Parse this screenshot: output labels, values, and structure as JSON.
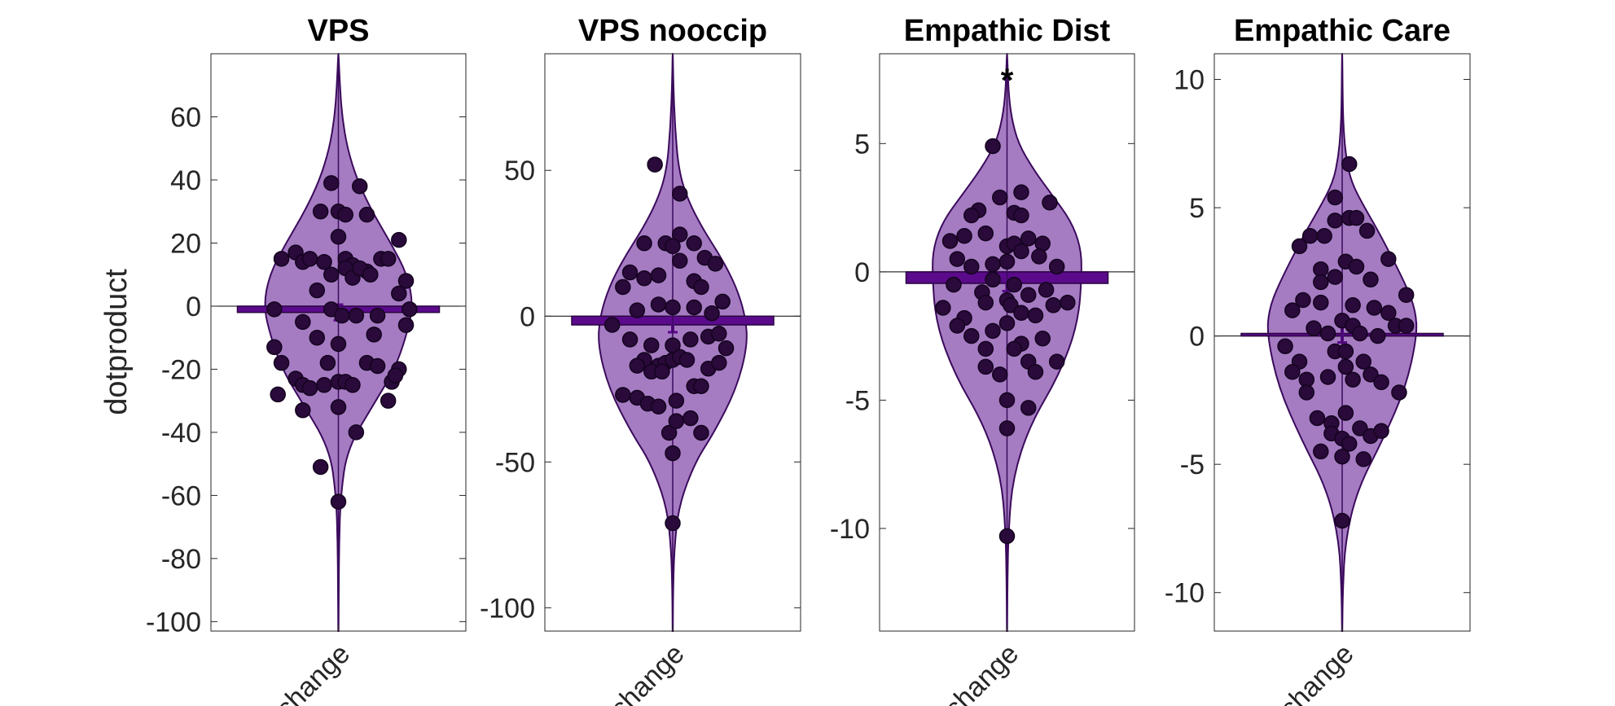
{
  "ylabel": "dotproduct",
  "colors": {
    "violin_fill": "#a57cc2",
    "violin_edge": "#3b0a5c",
    "bar_fill": "#5b0a8c",
    "point_fill": "#2a0a3a",
    "zero_line": "#000000",
    "axis": "#262626"
  },
  "chart_data": [
    {
      "type": "violin",
      "title": "VPS",
      "xlabel": "change",
      "ylim": [
        -103,
        80
      ],
      "yticks": [
        60,
        40,
        20,
        0,
        -20,
        -40,
        -60,
        -80,
        -100
      ],
      "ytick_labels": [
        "60",
        "40",
        "20",
        "0",
        "-20",
        "-40",
        "-60",
        "-80",
        "-100"
      ],
      "mean": -2.0,
      "sem": 2.5,
      "significant_marker": "",
      "violin_range": [
        -103,
        80
      ],
      "violin_density": [
        [
          -103,
          0.002
        ],
        [
          -90,
          0.005
        ],
        [
          -75,
          0.01
        ],
        [
          -60,
          0.03
        ],
        [
          -45,
          0.12
        ],
        [
          -30,
          0.5
        ],
        [
          -20,
          0.75
        ],
        [
          -10,
          0.9
        ],
        [
          0,
          1.0
        ],
        [
          10,
          0.92
        ],
        [
          20,
          0.7
        ],
        [
          30,
          0.45
        ],
        [
          40,
          0.25
        ],
        [
          50,
          0.12
        ],
        [
          60,
          0.05
        ],
        [
          70,
          0.02
        ],
        [
          80,
          0.002
        ]
      ],
      "points": [
        {
          "x": -0.8,
          "y": 15
        },
        {
          "x": -0.6,
          "y": 17
        },
        {
          "x": -0.5,
          "y": 14
        },
        {
          "x": -0.4,
          "y": 15
        },
        {
          "x": -0.2,
          "y": 14
        },
        {
          "x": 0.1,
          "y": 15
        },
        {
          "x": 0.2,
          "y": 13
        },
        {
          "x": 0.4,
          "y": 11
        },
        {
          "x": 0.6,
          "y": 15
        },
        {
          "x": 0.7,
          "y": 15
        },
        {
          "x": 0.85,
          "y": 21
        },
        {
          "x": -0.25,
          "y": 30
        },
        {
          "x": -0.1,
          "y": 39
        },
        {
          "x": 0.0,
          "y": 30
        },
        {
          "x": 0.1,
          "y": 29
        },
        {
          "x": 0.3,
          "y": 38
        },
        {
          "x": 0.4,
          "y": 29
        },
        {
          "x": 0.0,
          "y": 22
        },
        {
          "x": -0.3,
          "y": 5
        },
        {
          "x": -0.1,
          "y": 10
        },
        {
          "x": 0.1,
          "y": 12
        },
        {
          "x": 0.2,
          "y": 9
        },
        {
          "x": 0.3,
          "y": 12
        },
        {
          "x": 0.45,
          "y": 10
        },
        {
          "x": 0.85,
          "y": 4
        },
        {
          "x": 0.95,
          "y": 8
        },
        {
          "x": -0.9,
          "y": -1
        },
        {
          "x": -0.5,
          "y": -5
        },
        {
          "x": -0.1,
          "y": -1
        },
        {
          "x": 0.05,
          "y": -3
        },
        {
          "x": 0.25,
          "y": -3
        },
        {
          "x": 0.55,
          "y": -3
        },
        {
          "x": 1.0,
          "y": -1
        },
        {
          "x": 0.95,
          "y": -6
        },
        {
          "x": -0.9,
          "y": -13
        },
        {
          "x": -0.3,
          "y": -10
        },
        {
          "x": 0.0,
          "y": -12
        },
        {
          "x": 0.5,
          "y": -9
        },
        {
          "x": -0.8,
          "y": -18
        },
        {
          "x": -0.6,
          "y": -23
        },
        {
          "x": -0.5,
          "y": -25
        },
        {
          "x": -0.4,
          "y": -26
        },
        {
          "x": -0.2,
          "y": -25
        },
        {
          "x": 0.0,
          "y": -24
        },
        {
          "x": 0.1,
          "y": -24
        },
        {
          "x": 0.2,
          "y": -25
        },
        {
          "x": 0.4,
          "y": -18
        },
        {
          "x": 0.55,
          "y": -19
        },
        {
          "x": 0.75,
          "y": -24
        },
        {
          "x": 0.85,
          "y": -20
        },
        {
          "x": 0.8,
          "y": -22
        },
        {
          "x": -0.15,
          "y": -18
        },
        {
          "x": -0.85,
          "y": -28
        },
        {
          "x": -0.5,
          "y": -33
        },
        {
          "x": 0.0,
          "y": -32
        },
        {
          "x": 0.7,
          "y": -30
        },
        {
          "x": 0.25,
          "y": -40
        },
        {
          "x": -0.25,
          "y": -51
        },
        {
          "x": 0.0,
          "y": -62
        }
      ]
    },
    {
      "type": "violin",
      "title": "VPS nooccip",
      "xlabel": "change",
      "ylim": [
        -108,
        90
      ],
      "yticks": [
        50,
        0,
        -50,
        -100
      ],
      "ytick_labels": [
        "50",
        "0",
        "-50",
        "-100"
      ],
      "mean": -3.0,
      "sem": 2.5,
      "significant_marker": "",
      "violin_range": [
        -108,
        90
      ],
      "violin_density": [
        [
          -108,
          0.002
        ],
        [
          -95,
          0.005
        ],
        [
          -80,
          0.02
        ],
        [
          -65,
          0.08
        ],
        [
          -50,
          0.3
        ],
        [
          -40,
          0.55
        ],
        [
          -25,
          0.85
        ],
        [
          -10,
          1.0
        ],
        [
          0,
          0.97
        ],
        [
          10,
          0.85
        ],
        [
          20,
          0.65
        ],
        [
          30,
          0.4
        ],
        [
          40,
          0.2
        ],
        [
          50,
          0.08
        ],
        [
          65,
          0.03
        ],
        [
          80,
          0.008
        ],
        [
          90,
          0.002
        ]
      ],
      "points": [
        {
          "x": -0.25,
          "y": 52
        },
        {
          "x": 0.1,
          "y": 42
        },
        {
          "x": 0.1,
          "y": 28
        },
        {
          "x": -0.6,
          "y": 15
        },
        {
          "x": -0.4,
          "y": 13
        },
        {
          "x": -0.2,
          "y": 14
        },
        {
          "x": -0.1,
          "y": 25
        },
        {
          "x": 0.0,
          "y": 24
        },
        {
          "x": 0.1,
          "y": 19
        },
        {
          "x": 0.3,
          "y": 12
        },
        {
          "x": 0.4,
          "y": 10
        },
        {
          "x": 0.3,
          "y": 25
        },
        {
          "x": 0.45,
          "y": 20
        },
        {
          "x": 0.6,
          "y": 18
        },
        {
          "x": -0.4,
          "y": 25
        },
        {
          "x": -0.7,
          "y": 10
        },
        {
          "x": -0.5,
          "y": 2
        },
        {
          "x": -0.2,
          "y": 4
        },
        {
          "x": 0.0,
          "y": 3
        },
        {
          "x": 0.3,
          "y": 3
        },
        {
          "x": 0.55,
          "y": 1
        },
        {
          "x": 0.7,
          "y": 5
        },
        {
          "x": -0.85,
          "y": -3
        },
        {
          "x": -0.6,
          "y": -8
        },
        {
          "x": -0.3,
          "y": -10
        },
        {
          "x": 0.0,
          "y": -10
        },
        {
          "x": 0.25,
          "y": -8
        },
        {
          "x": 0.5,
          "y": -7
        },
        {
          "x": 0.65,
          "y": -6
        },
        {
          "x": 0.75,
          "y": -11
        },
        {
          "x": -0.4,
          "y": -15
        },
        {
          "x": -0.2,
          "y": -17
        },
        {
          "x": -0.1,
          "y": -16
        },
        {
          "x": 0.0,
          "y": -15
        },
        {
          "x": 0.1,
          "y": -14
        },
        {
          "x": 0.2,
          "y": -15
        },
        {
          "x": -0.3,
          "y": -19
        },
        {
          "x": -0.15,
          "y": -19
        },
        {
          "x": 0.5,
          "y": -18
        },
        {
          "x": 0.65,
          "y": -16
        },
        {
          "x": -0.5,
          "y": -17
        },
        {
          "x": -0.7,
          "y": -27
        },
        {
          "x": -0.5,
          "y": -28
        },
        {
          "x": -0.35,
          "y": -30
        },
        {
          "x": -0.2,
          "y": -31
        },
        {
          "x": 0.05,
          "y": -29
        },
        {
          "x": 0.3,
          "y": -24
        },
        {
          "x": 0.4,
          "y": -24
        },
        {
          "x": -0.05,
          "y": -40
        },
        {
          "x": 0.05,
          "y": -36
        },
        {
          "x": 0.25,
          "y": -35
        },
        {
          "x": 0.4,
          "y": -40
        },
        {
          "x": 0.0,
          "y": -47
        },
        {
          "x": 0.0,
          "y": -71
        }
      ]
    },
    {
      "type": "violin",
      "title": "Empathic Dist",
      "xlabel": "change",
      "ylim": [
        -14,
        8.5
      ],
      "yticks": [
        5,
        0,
        -5,
        -10
      ],
      "ytick_labels": [
        "5",
        "0",
        "-5",
        "-10"
      ],
      "mean": -0.45,
      "sem": 0.3,
      "significant_marker": "*",
      "violin_range": [
        -14,
        8.5
      ],
      "violin_density": [
        [
          -14,
          0.002
        ],
        [
          -12,
          0.006
        ],
        [
          -10,
          0.02
        ],
        [
          -8,
          0.08
        ],
        [
          -6,
          0.3
        ],
        [
          -4,
          0.7
        ],
        [
          -2,
          0.95
        ],
        [
          0,
          1.0
        ],
        [
          1,
          0.98
        ],
        [
          2,
          0.85
        ],
        [
          3,
          0.6
        ],
        [
          4,
          0.35
        ],
        [
          5,
          0.15
        ],
        [
          6,
          0.06
        ],
        [
          7,
          0.02
        ],
        [
          8.5,
          0.002
        ]
      ],
      "points": [
        {
          "x": -0.2,
          "y": 4.9
        },
        {
          "x": -0.1,
          "y": 2.9
        },
        {
          "x": 0.2,
          "y": 3.1
        },
        {
          "x": 0.6,
          "y": 2.7
        },
        {
          "x": -0.4,
          "y": 2.4
        },
        {
          "x": -0.5,
          "y": 2.2
        },
        {
          "x": 0.1,
          "y": 2.3
        },
        {
          "x": 0.2,
          "y": 2.2
        },
        {
          "x": -0.8,
          "y": 1.2
        },
        {
          "x": -0.6,
          "y": 1.4
        },
        {
          "x": -0.3,
          "y": 1.5
        },
        {
          "x": 0.0,
          "y": 1.0
        },
        {
          "x": 0.1,
          "y": 1.1
        },
        {
          "x": 0.3,
          "y": 1.3
        },
        {
          "x": 0.5,
          "y": 1.1
        },
        {
          "x": -0.7,
          "y": 0.5
        },
        {
          "x": -0.5,
          "y": 0.2
        },
        {
          "x": -0.2,
          "y": 0.3
        },
        {
          "x": 0.0,
          "y": 0.4
        },
        {
          "x": 0.2,
          "y": 0.8
        },
        {
          "x": 0.45,
          "y": 0.6
        },
        {
          "x": 0.7,
          "y": 0.2
        },
        {
          "x": -0.75,
          "y": -0.5
        },
        {
          "x": -0.35,
          "y": -0.8
        },
        {
          "x": -0.2,
          "y": -0.3
        },
        {
          "x": 0.1,
          "y": -0.5
        },
        {
          "x": 0.3,
          "y": -0.9
        },
        {
          "x": 0.55,
          "y": -0.7
        },
        {
          "x": -0.9,
          "y": -1.4
        },
        {
          "x": -0.6,
          "y": -1.8
        },
        {
          "x": -0.3,
          "y": -1.2
        },
        {
          "x": 0.0,
          "y": -1.1
        },
        {
          "x": 0.05,
          "y": -1.3
        },
        {
          "x": 0.2,
          "y": -1.6
        },
        {
          "x": 0.4,
          "y": -1.7
        },
        {
          "x": 0.65,
          "y": -1.3
        },
        {
          "x": 0.85,
          "y": -1.2
        },
        {
          "x": -0.5,
          "y": -2.5
        },
        {
          "x": -0.2,
          "y": -2.3
        },
        {
          "x": 0.0,
          "y": -2.0
        },
        {
          "x": 0.2,
          "y": -2.8
        },
        {
          "x": 0.5,
          "y": -2.6
        },
        {
          "x": -0.7,
          "y": -2.1
        },
        {
          "x": -0.3,
          "y": -3.0
        },
        {
          "x": 0.1,
          "y": -3.0
        },
        {
          "x": 0.3,
          "y": -3.5
        },
        {
          "x": -0.3,
          "y": -3.7
        },
        {
          "x": -0.1,
          "y": -4.0
        },
        {
          "x": 0.4,
          "y": -3.9
        },
        {
          "x": 0.7,
          "y": -3.5
        },
        {
          "x": 0.0,
          "y": -5.0
        },
        {
          "x": 0.3,
          "y": -5.3
        },
        {
          "x": 0.0,
          "y": -6.1
        },
        {
          "x": 0.0,
          "y": -10.3
        }
      ]
    },
    {
      "type": "violin",
      "title": "Empathic Care",
      "xlabel": "change",
      "ylim": [
        -11.5,
        11
      ],
      "yticks": [
        10,
        5,
        0,
        -5,
        -10
      ],
      "ytick_labels": [
        "10",
        "5",
        "0",
        "-5",
        "-10"
      ],
      "mean": 0.1,
      "sem": 0.35,
      "significant_marker": "",
      "violin_range": [
        -11.5,
        11
      ],
      "violin_density": [
        [
          -11.5,
          0.002
        ],
        [
          -10,
          0.008
        ],
        [
          -8,
          0.04
        ],
        [
          -6,
          0.2
        ],
        [
          -4,
          0.55
        ],
        [
          -2,
          0.85
        ],
        [
          0,
          1.0
        ],
        [
          1,
          0.98
        ],
        [
          2,
          0.85
        ],
        [
          4,
          0.5
        ],
        [
          5,
          0.3
        ],
        [
          6,
          0.12
        ],
        [
          7,
          0.05
        ],
        [
          8,
          0.02
        ],
        [
          9,
          0.008
        ],
        [
          11,
          0.002
        ]
      ],
      "points": [
        {
          "x": 0.1,
          "y": 6.7
        },
        {
          "x": -0.1,
          "y": 5.4
        },
        {
          "x": -0.25,
          "y": 3.9
        },
        {
          "x": -0.1,
          "y": 4.5
        },
        {
          "x": 0.1,
          "y": 4.6
        },
        {
          "x": 0.2,
          "y": 4.6
        },
        {
          "x": 0.35,
          "y": 4.1
        },
        {
          "x": -0.6,
          "y": 3.5
        },
        {
          "x": -0.45,
          "y": 3.9
        },
        {
          "x": -0.3,
          "y": 2.6
        },
        {
          "x": -0.1,
          "y": 2.3
        },
        {
          "x": 0.05,
          "y": 2.9
        },
        {
          "x": 0.2,
          "y": 2.7
        },
        {
          "x": 0.4,
          "y": 2.2
        },
        {
          "x": 0.65,
          "y": 3.0
        },
        {
          "x": -0.3,
          "y": 2.1
        },
        {
          "x": -0.55,
          "y": 1.4
        },
        {
          "x": -0.7,
          "y": 1.0
        },
        {
          "x": -0.3,
          "y": 1.3
        },
        {
          "x": 0.15,
          "y": 1.2
        },
        {
          "x": 0.45,
          "y": 1.1
        },
        {
          "x": 0.65,
          "y": 0.9
        },
        {
          "x": 0.9,
          "y": 1.6
        },
        {
          "x": -0.4,
          "y": 0.3
        },
        {
          "x": -0.2,
          "y": 0.1
        },
        {
          "x": 0.0,
          "y": 0.6
        },
        {
          "x": 0.15,
          "y": 0.4
        },
        {
          "x": 0.25,
          "y": 0.1
        },
        {
          "x": 0.5,
          "y": 0.0
        },
        {
          "x": 0.75,
          "y": 0.4
        },
        {
          "x": 0.9,
          "y": 0.4
        },
        {
          "x": -0.8,
          "y": -0.4
        },
        {
          "x": -0.6,
          "y": -1.0
        },
        {
          "x": -0.1,
          "y": -0.6
        },
        {
          "x": 0.05,
          "y": -0.6
        },
        {
          "x": 0.3,
          "y": -1.0
        },
        {
          "x": -0.7,
          "y": -1.4
        },
        {
          "x": -0.5,
          "y": -1.7
        },
        {
          "x": -0.2,
          "y": -1.6
        },
        {
          "x": 0.05,
          "y": -1.2
        },
        {
          "x": 0.15,
          "y": -1.7
        },
        {
          "x": 0.4,
          "y": -1.5
        },
        {
          "x": 0.55,
          "y": -1.8
        },
        {
          "x": 0.8,
          "y": -2.2
        },
        {
          "x": -0.5,
          "y": -2.2
        },
        {
          "x": -0.35,
          "y": -3.2
        },
        {
          "x": -0.15,
          "y": -3.4
        },
        {
          "x": 0.05,
          "y": -3.0
        },
        {
          "x": 0.25,
          "y": -3.6
        },
        {
          "x": -0.15,
          "y": -3.8
        },
        {
          "x": 0.0,
          "y": -4.0
        },
        {
          "x": 0.1,
          "y": -4.2
        },
        {
          "x": -0.3,
          "y": -4.5
        },
        {
          "x": 0.4,
          "y": -3.9
        },
        {
          "x": 0.55,
          "y": -3.7
        },
        {
          "x": 0.0,
          "y": -4.7
        },
        {
          "x": 0.3,
          "y": -4.8
        },
        {
          "x": 0.0,
          "y": -7.2
        }
      ]
    }
  ]
}
